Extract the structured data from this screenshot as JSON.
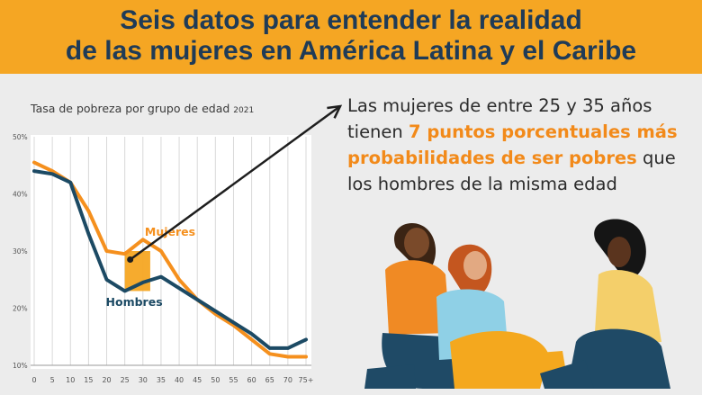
{
  "banner": {
    "title_line1": "Seis datos para entender la realidad",
    "title_line2": "de las mujeres en América Latina y el Caribe",
    "bg_color": "#f5a623",
    "text_color": "#1f3b57"
  },
  "statement": {
    "part1": "Las mujeres de entre 25 y 35 años tienen ",
    "highlight": "7 puntos porcentuales más probabilidades de ser pobres",
    "part2": " que los hombres de la misma edad",
    "highlight_color": "#f28a1a"
  },
  "illustration": {
    "icon": "three-women-illustration"
  },
  "chart_data": {
    "type": "line",
    "title": "Tasa de pobreza por grupo de edad",
    "title_year": "2021",
    "categories": [
      "0",
      "5",
      "10",
      "15",
      "20",
      "25",
      "30",
      "35",
      "40",
      "45",
      "50",
      "55",
      "60",
      "65",
      "70",
      "75+"
    ],
    "ylim": [
      10,
      50
    ],
    "yticks": [
      "10%",
      "20%",
      "30%",
      "40%",
      "50%"
    ],
    "ytick_values": [
      10,
      20,
      30,
      40,
      50
    ],
    "grid": "vertical",
    "series": [
      {
        "name": "Mujeres",
        "color": "#f5901e",
        "values": [
          45.5,
          44,
          42,
          37,
          30,
          29.5,
          32,
          30,
          25,
          21.5,
          19,
          17,
          14.5,
          12,
          11.5,
          11.5
        ]
      },
      {
        "name": "Hombres",
        "color": "#1c4a64",
        "values": [
          44,
          43.5,
          42,
          33,
          25,
          23,
          24.5,
          25.5,
          23.5,
          21.5,
          19.5,
          17.5,
          15.5,
          13,
          13,
          14.5
        ]
      }
    ],
    "highlight_range": [
      "25",
      "35"
    ],
    "highlight_color": "#f5a623"
  }
}
